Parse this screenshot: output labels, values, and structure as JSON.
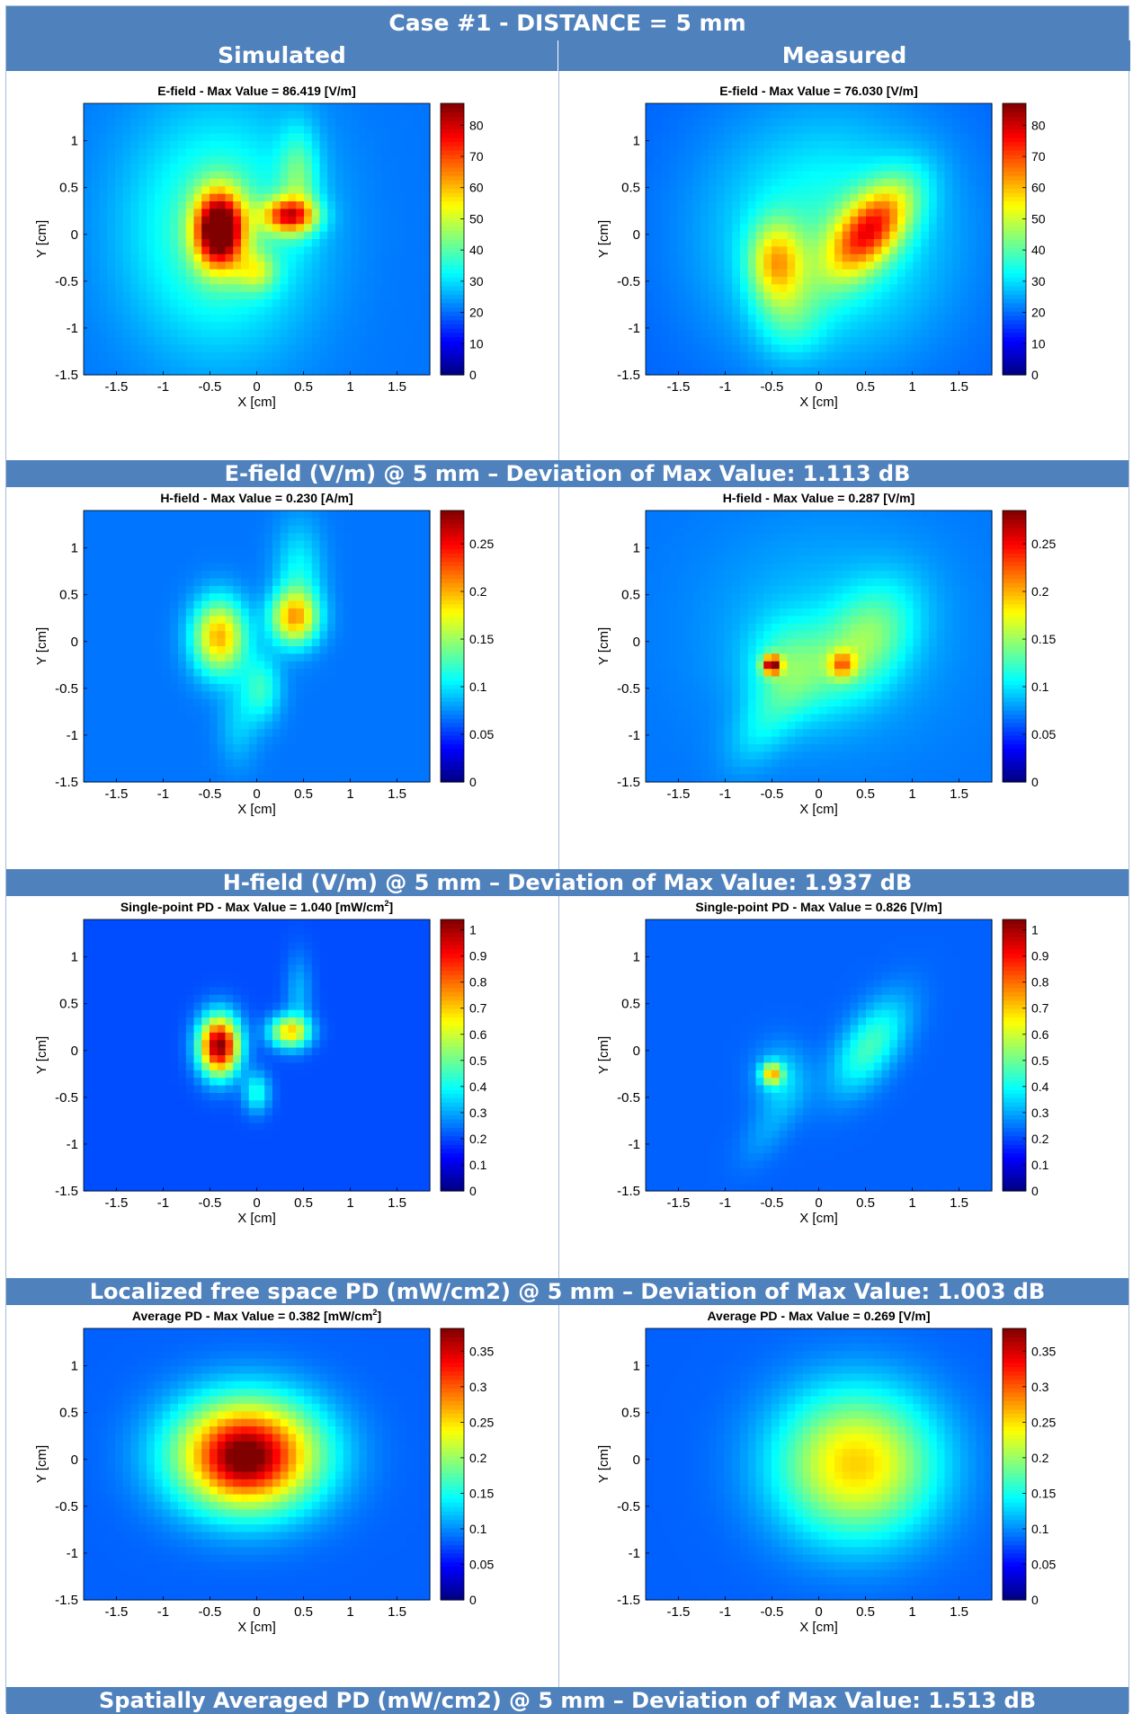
{
  "title": "Case #1 - DISTANCE = 5 mm",
  "columns": [
    "Simulated",
    "Measured"
  ],
  "separators": [
    "E-field (V/m) @ 5 mm – Deviation of Max Value: 1.113 dB",
    "H-field (V/m) @ 5 mm – Deviation of Max Value: 1.937 dB",
    "Localized free space PD (mW/cm2) @ 5 mm – Deviation of Max Value: 1.003 dB",
    "Spatially Averaged PD (mW/cm2) @ 5 mm – Deviation of Max Value: 1.513 dB"
  ],
  "colormap": "jet",
  "chart_data": [
    {
      "type": "heatmap",
      "title": "E-field - Max Value = 86.419 [V/m]",
      "title_sup": "",
      "xlabel": "X [cm]",
      "ylabel": "Y [cm]",
      "xlim": [
        -1.85,
        1.85
      ],
      "ylim": [
        -1.5,
        1.4
      ],
      "xticks": [
        "-1.5",
        "-1",
        "-0.5",
        "0",
        "0.5",
        "1",
        "1.5"
      ],
      "yticks": [
        "1",
        "0.5",
        "0",
        "-0.5",
        "-1",
        "-1.5"
      ],
      "colorbar": {
        "min": 0,
        "max": 87,
        "ticks": [
          "0",
          "10",
          "20",
          "30",
          "40",
          "50",
          "60",
          "70",
          "80"
        ]
      },
      "max_value": 86.419,
      "background": 0.24,
      "hotspots": [
        {
          "x": -0.4,
          "y": 0.05,
          "sx": 0.18,
          "sy": 0.28,
          "v": 0.76,
          "rot": 0
        },
        {
          "x": 0.35,
          "y": 0.2,
          "sx": 0.2,
          "sy": 0.13,
          "v": 0.5,
          "rot": 0
        },
        {
          "x": 0.0,
          "y": -0.4,
          "sx": 0.15,
          "sy": 0.15,
          "v": 0.2,
          "rot": 0
        },
        {
          "x": 0.45,
          "y": 0.6,
          "sx": 0.15,
          "sy": 0.38,
          "v": 0.18,
          "rot": 0
        },
        {
          "x": -0.4,
          "y": 0.05,
          "sx": 0.7,
          "sy": 0.9,
          "v": 0.22,
          "rot": 0
        }
      ]
    },
    {
      "type": "heatmap",
      "title": "E-field - Max Value = 76.030 [V/m]",
      "title_sup": "",
      "xlabel": "X [cm]",
      "ylabel": "Y [cm]",
      "xlim": [
        -1.85,
        1.85
      ],
      "ylim": [
        -1.5,
        1.4
      ],
      "xticks": [
        "-1.5",
        "-1",
        "-0.5",
        "0",
        "0.5",
        "1",
        "1.5"
      ],
      "yticks": [
        "1",
        "0.5",
        "0",
        "-0.5",
        "-1",
        "-1.5"
      ],
      "colorbar": {
        "min": 0,
        "max": 87,
        "ticks": [
          "0",
          "10",
          "20",
          "30",
          "40",
          "50",
          "60",
          "70",
          "80"
        ]
      },
      "max_value": 76.03,
      "background": 0.22,
      "hotspots": [
        {
          "x": 0.55,
          "y": 0.05,
          "sx": 0.22,
          "sy": 0.42,
          "v": 0.5,
          "rot": -0.7
        },
        {
          "x": -0.45,
          "y": -0.3,
          "sx": 0.2,
          "sy": 0.3,
          "v": 0.34,
          "rot": 0
        },
        {
          "x": 0.1,
          "y": 0.0,
          "sx": 0.9,
          "sy": 0.9,
          "v": 0.2,
          "rot": 0
        },
        {
          "x": -0.3,
          "y": -0.9,
          "sx": 0.25,
          "sy": 0.3,
          "v": 0.12,
          "rot": 0
        }
      ]
    },
    {
      "type": "heatmap",
      "title": "H-field - Max Value = 0.230 [A/m]",
      "title_sup": "",
      "xlabel": "X [cm]",
      "ylabel": "Y [cm]",
      "xlim": [
        -1.85,
        1.85
      ],
      "ylim": [
        -1.5,
        1.4
      ],
      "xticks": [
        "-1.5",
        "-1",
        "-0.5",
        "0",
        "0.5",
        "1",
        "1.5"
      ],
      "yticks": [
        "1",
        "0.5",
        "0",
        "-0.5",
        "-1",
        "-1.5"
      ],
      "colorbar": {
        "min": 0,
        "max": 0.285,
        "ticks": [
          "0",
          "0.05",
          "0.1",
          "0.15",
          "0.2",
          "0.25"
        ]
      },
      "max_value": 0.23,
      "background": 0.24,
      "hotspots": [
        {
          "x": -0.4,
          "y": 0.05,
          "sx": 0.2,
          "sy": 0.28,
          "v": 0.46,
          "rot": 0
        },
        {
          "x": 0.4,
          "y": 0.25,
          "sx": 0.18,
          "sy": 0.2,
          "v": 0.42,
          "rot": 0
        },
        {
          "x": 0.05,
          "y": -0.5,
          "sx": 0.15,
          "sy": 0.25,
          "v": 0.18,
          "rot": 0
        },
        {
          "x": 0.45,
          "y": 0.7,
          "sx": 0.18,
          "sy": 0.4,
          "v": 0.14,
          "rot": 0
        },
        {
          "x": -0.2,
          "y": -0.9,
          "sx": 0.15,
          "sy": 0.3,
          "v": 0.08,
          "rot": 0
        }
      ]
    },
    {
      "type": "heatmap",
      "title": "H-field - Max Value = 0.287 [V/m]",
      "title_sup": "",
      "xlabel": "X [cm]",
      "ylabel": "Y [cm]",
      "xlim": [
        -1.85,
        1.85
      ],
      "ylim": [
        -1.5,
        1.4
      ],
      "xticks": [
        "-1.5",
        "-1",
        "-0.5",
        "0",
        "0.5",
        "1",
        "1.5"
      ],
      "yticks": [
        "1",
        "0.5",
        "0",
        "-0.5",
        "-1",
        "-1.5"
      ],
      "colorbar": {
        "min": 0,
        "max": 0.285,
        "ticks": [
          "0",
          "0.05",
          "0.1",
          "0.15",
          "0.2",
          "0.25"
        ]
      },
      "max_value": 0.287,
      "background": 0.24,
      "hotspots": [
        {
          "x": -0.5,
          "y": -0.25,
          "sx": 0.07,
          "sy": 0.07,
          "v": 0.6,
          "rot": 0
        },
        {
          "x": 0.25,
          "y": -0.25,
          "sx": 0.1,
          "sy": 0.1,
          "v": 0.3,
          "rot": 0
        },
        {
          "x": 0.5,
          "y": 0.0,
          "sx": 0.3,
          "sy": 0.45,
          "v": 0.22,
          "rot": -0.6
        },
        {
          "x": -0.3,
          "y": -0.3,
          "sx": 0.3,
          "sy": 0.35,
          "v": 0.18,
          "rot": 0
        },
        {
          "x": -0.6,
          "y": -0.9,
          "sx": 0.2,
          "sy": 0.35,
          "v": 0.1,
          "rot": -0.6
        },
        {
          "x": 0.1,
          "y": 0.1,
          "sx": 0.9,
          "sy": 0.8,
          "v": 0.08,
          "rot": 0
        }
      ]
    },
    {
      "type": "heatmap",
      "title": "Single-point PD - Max Value = 1.040 [mW/cm",
      "title_sup": "2",
      "title_end": "]",
      "xlabel": "X [cm]",
      "ylabel": "Y [cm]",
      "xlim": [
        -1.85,
        1.85
      ],
      "ylim": [
        -1.5,
        1.4
      ],
      "xticks": [
        "-1.5",
        "-1",
        "-0.5",
        "0",
        "0.5",
        "1",
        "1.5"
      ],
      "yticks": [
        "1",
        "0.5",
        "0",
        "-0.5",
        "-1",
        "-1.5"
      ],
      "colorbar": {
        "min": 0,
        "max": 1.04,
        "ticks": [
          "0",
          "0.1",
          "0.2",
          "0.3",
          "0.4",
          "0.5",
          "0.6",
          "0.7",
          "0.8",
          "0.9",
          "1"
        ]
      },
      "max_value": 1.04,
      "background": 0.2,
      "hotspots": [
        {
          "x": -0.4,
          "y": 0.05,
          "sx": 0.15,
          "sy": 0.22,
          "v": 0.8,
          "rot": 0
        },
        {
          "x": 0.35,
          "y": 0.2,
          "sx": 0.15,
          "sy": 0.12,
          "v": 0.45,
          "rot": 0
        },
        {
          "x": 0.0,
          "y": -0.45,
          "sx": 0.1,
          "sy": 0.15,
          "v": 0.2,
          "rot": 0
        },
        {
          "x": 0.45,
          "y": 0.6,
          "sx": 0.1,
          "sy": 0.3,
          "v": 0.1,
          "rot": 0
        }
      ]
    },
    {
      "type": "heatmap",
      "title": "Single-point PD - Max Value = 0.826 [V/m]",
      "title_sup": "",
      "xlabel": "X [cm]",
      "ylabel": "Y [cm]",
      "xlim": [
        -1.85,
        1.85
      ],
      "ylim": [
        -1.5,
        1.4
      ],
      "xticks": [
        "-1.5",
        "-1",
        "-0.5",
        "0",
        "0.5",
        "1",
        "1.5"
      ],
      "yticks": [
        "1",
        "0.5",
        "0",
        "-0.5",
        "-1",
        "-1.5"
      ],
      "colorbar": {
        "min": 0,
        "max": 1.04,
        "ticks": [
          "0",
          "0.1",
          "0.2",
          "0.3",
          "0.4",
          "0.5",
          "0.6",
          "0.7",
          "0.8",
          "0.9",
          "1"
        ]
      },
      "max_value": 0.826,
      "background": 0.22,
      "hotspots": [
        {
          "x": -0.5,
          "y": -0.25,
          "sx": 0.08,
          "sy": 0.08,
          "v": 0.4,
          "rot": 0
        },
        {
          "x": 0.55,
          "y": 0.05,
          "sx": 0.2,
          "sy": 0.4,
          "v": 0.22,
          "rot": -0.6
        },
        {
          "x": -0.4,
          "y": -0.3,
          "sx": 0.2,
          "sy": 0.25,
          "v": 0.12,
          "rot": 0
        },
        {
          "x": -0.55,
          "y": -0.85,
          "sx": 0.15,
          "sy": 0.3,
          "v": 0.06,
          "rot": -0.6
        }
      ]
    },
    {
      "type": "heatmap",
      "title": "Average PD - Max Value = 0.382 [mW/cm",
      "title_sup": "2",
      "title_end": "]",
      "xlabel": "X [cm]",
      "ylabel": "Y [cm]",
      "xlim": [
        -1.85,
        1.85
      ],
      "ylim": [
        -1.5,
        1.4
      ],
      "xticks": [
        "-1.5",
        "-1",
        "-0.5",
        "0",
        "0.5",
        "1",
        "1.5"
      ],
      "yticks": [
        "1",
        "0.5",
        "0",
        "-0.5",
        "-1",
        "-1.5"
      ],
      "colorbar": {
        "min": 0,
        "max": 0.382,
        "ticks": [
          "0",
          "0.05",
          "0.1",
          "0.15",
          "0.2",
          "0.25",
          "0.3",
          "0.35"
        ]
      },
      "max_value": 0.382,
      "background": 0.22,
      "hotspots": [
        {
          "x": -0.1,
          "y": 0.05,
          "sx": 0.55,
          "sy": 0.42,
          "v": 0.72,
          "rot": 0
        },
        {
          "x": -0.15,
          "y": 0.0,
          "sx": 0.25,
          "sy": 0.22,
          "v": 0.12,
          "rot": 0
        }
      ]
    },
    {
      "type": "heatmap",
      "title": "Average PD - Max Value = 0.269 [V/m]",
      "title_sup": "",
      "xlabel": "X [cm]",
      "ylabel": "Y [cm]",
      "xlim": [
        -1.85,
        1.85
      ],
      "ylim": [
        -1.5,
        1.4
      ],
      "xticks": [
        "-1.5",
        "-1",
        "-0.5",
        "0",
        "0.5",
        "1",
        "1.5"
      ],
      "yticks": [
        "1",
        "0.5",
        "0",
        "-0.5",
        "-1",
        "-1.5"
      ],
      "colorbar": {
        "min": 0,
        "max": 0.382,
        "ticks": [
          "0",
          "0.05",
          "0.1",
          "0.15",
          "0.2",
          "0.25",
          "0.3",
          "0.35"
        ]
      },
      "max_value": 0.269,
      "background": 0.22,
      "hotspots": [
        {
          "x": 0.4,
          "y": -0.05,
          "sx": 0.6,
          "sy": 0.55,
          "v": 0.45,
          "rot": 0
        }
      ]
    }
  ]
}
